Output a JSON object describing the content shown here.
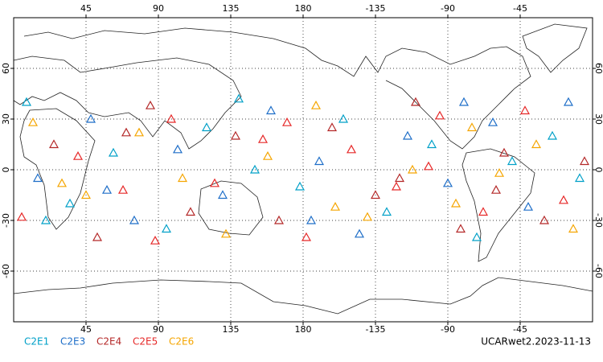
{
  "chart_data": {
    "type": "scatter",
    "xlim": [
      0,
      360
    ],
    "ylim": [
      -90,
      90
    ],
    "xticks": [
      45,
      90,
      135,
      180,
      {
        "value": 225,
        "label": "-135"
      },
      {
        "value": 270,
        "label": "-90"
      },
      {
        "value": 315,
        "label": "-45"
      }
    ],
    "yticks": [
      60,
      30,
      0,
      -30,
      -60
    ],
    "grid": true,
    "annotation": "UCARwet2.2023-11-13",
    "series": [
      {
        "name": "C2E1",
        "color": "#00a0c8",
        "x": [
          8,
          35,
          62,
          95,
          120,
          150,
          178,
          205,
          232,
          260,
          288,
          310,
          335,
          352,
          20,
          140
        ],
        "values": [
          40,
          -20,
          10,
          -35,
          25,
          0,
          -10,
          30,
          -25,
          15,
          -40,
          5,
          20,
          -5,
          -30,
          42
        ]
      },
      {
        "name": "C2E3",
        "color": "#1e6ec8",
        "x": [
          15,
          48,
          75,
          102,
          130,
          160,
          190,
          215,
          245,
          270,
          298,
          320,
          345,
          58,
          185,
          280
        ],
        "values": [
          -5,
          30,
          -30,
          12,
          -15,
          35,
          5,
          -38,
          20,
          -8,
          28,
          -22,
          40,
          -12,
          -30,
          40
        ]
      },
      {
        "name": "C2E4",
        "color": "#b42828",
        "x": [
          25,
          52,
          85,
          110,
          138,
          165,
          198,
          225,
          250,
          278,
          305,
          330,
          355,
          70,
          240,
          300
        ],
        "values": [
          15,
          -40,
          38,
          -25,
          20,
          -30,
          25,
          -15,
          40,
          -35,
          10,
          -30,
          5,
          22,
          -5,
          -12
        ]
      },
      {
        "name": "C2E5",
        "color": "#e62828",
        "x": [
          5,
          40,
          68,
          98,
          125,
          155,
          182,
          210,
          238,
          265,
          292,
          318,
          342,
          88,
          170,
          258
        ],
        "values": [
          -28,
          8,
          -12,
          30,
          -8,
          18,
          -40,
          12,
          -10,
          32,
          -25,
          35,
          -18,
          -42,
          28,
          2
        ]
      },
      {
        "name": "C2E6",
        "color": "#f5a500",
        "x": [
          12,
          45,
          78,
          105,
          132,
          158,
          188,
          220,
          248,
          275,
          302,
          325,
          348,
          30,
          200,
          285
        ],
        "values": [
          28,
          -15,
          22,
          -5,
          -38,
          8,
          38,
          -28,
          0,
          -20,
          -2,
          15,
          -35,
          -8,
          -22,
          25
        ]
      }
    ]
  }
}
